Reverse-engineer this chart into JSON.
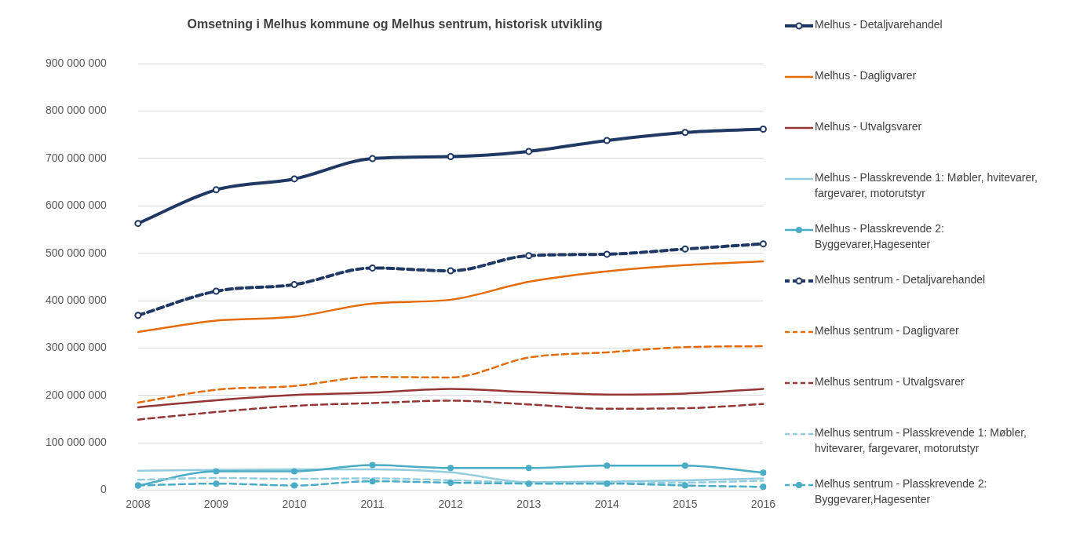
{
  "chart_data": {
    "type": "line",
    "title": "Omsetning i Melhus kommune og Melhus sentrum, historisk utvikling",
    "categories": [
      "2008",
      "2009",
      "2010",
      "2011",
      "2012",
      "2013",
      "2014",
      "2015",
      "2016"
    ],
    "ylim": [
      0,
      900000000
    ],
    "yticks": [
      {
        "value": 0,
        "label": "0"
      },
      {
        "value": 100000000,
        "label": "100 000 000"
      },
      {
        "value": 200000000,
        "label": "200 000 000"
      },
      {
        "value": 300000000,
        "label": "300 000 000"
      },
      {
        "value": 400000000,
        "label": "400 000 000"
      },
      {
        "value": 500000000,
        "label": "500 000 000"
      },
      {
        "value": 600000000,
        "label": "600 000 000"
      },
      {
        "value": 700000000,
        "label": "700 000 000"
      },
      {
        "value": 800000000,
        "label": "800 000 000"
      },
      {
        "value": 900000000,
        "label": "900 000 000"
      }
    ],
    "grid": "y",
    "legend": "right",
    "series": [
      {
        "name": "Melhus - Detaljvarehandel",
        "color": "#203864",
        "marker": "circle",
        "line_style": "solid",
        "values": [
          563000000,
          634000000,
          657000000,
          700000000,
          704000000,
          715000000,
          738000000,
          755000000,
          762000000
        ]
      },
      {
        "name": "Melhus - Dagligvarer",
        "color": "#e46c0a",
        "marker": "none",
        "line_style": "solid",
        "values": [
          334000000,
          358000000,
          366000000,
          394000000,
          402000000,
          440000000,
          462000000,
          475000000,
          483000000
        ]
      },
      {
        "name": "Melhus - Utvalgsvarer",
        "color": "#943634",
        "marker": "none",
        "line_style": "solid",
        "values": [
          175000000,
          190000000,
          201000000,
          206000000,
          214000000,
          207000000,
          202000000,
          204000000,
          214000000
        ]
      },
      {
        "name": "Melhus - Plasskrevende 1: Møbler, hvitevarer, fargevarer, motorutstyr",
        "color": "#93cddd",
        "marker": "none",
        "line_style": "solid",
        "values": [
          41000000,
          43000000,
          44000000,
          44000000,
          38000000,
          17000000,
          18000000,
          21000000,
          25000000
        ]
      },
      {
        "name": "Melhus - Plasskrevende 2: Byggevarer,Hagesenter",
        "color": "#4bacc6",
        "marker": "circle",
        "line_style": "solid",
        "values": [
          10000000,
          40000000,
          40000000,
          53000000,
          47000000,
          47000000,
          52000000,
          52000000,
          37000000
        ]
      },
      {
        "name": "Melhus sentrum - Detaljvarehandel",
        "color": "#203864",
        "marker": "circle",
        "line_style": "dashed",
        "values": [
          369000000,
          420000000,
          434000000,
          469000000,
          463000000,
          495000000,
          498000000,
          509000000,
          520000000
        ]
      },
      {
        "name": "Melhus sentrum - Dagligvarer",
        "color": "#e46c0a",
        "marker": "none",
        "line_style": "dashed",
        "values": [
          185000000,
          212000000,
          220000000,
          239000000,
          238000000,
          280000000,
          291000000,
          302000000,
          304000000
        ]
      },
      {
        "name": "Melhus sentrum - Utvalgsvarer",
        "color": "#943634",
        "marker": "none",
        "line_style": "dashed",
        "values": [
          149000000,
          165000000,
          178000000,
          184000000,
          189000000,
          181000000,
          172000000,
          173000000,
          182000000
        ]
      },
      {
        "name": "Melhus sentrum - Plasskrevende 1: Møbler, hvitevarer, fargevarer, motorutstyr",
        "color": "#93cddd",
        "marker": "none",
        "line_style": "dashed",
        "values": [
          22000000,
          26000000,
          24000000,
          25000000,
          21000000,
          16000000,
          15000000,
          16000000,
          20000000
        ]
      },
      {
        "name": "Melhus sentrum - Plasskrevende 2: Byggevarer,Hagesenter",
        "color": "#4bacc6",
        "marker": "circle",
        "line_style": "dashed",
        "values": [
          10000000,
          14000000,
          10000000,
          19000000,
          16000000,
          14000000,
          14000000,
          10000000,
          7000000
        ]
      }
    ]
  }
}
